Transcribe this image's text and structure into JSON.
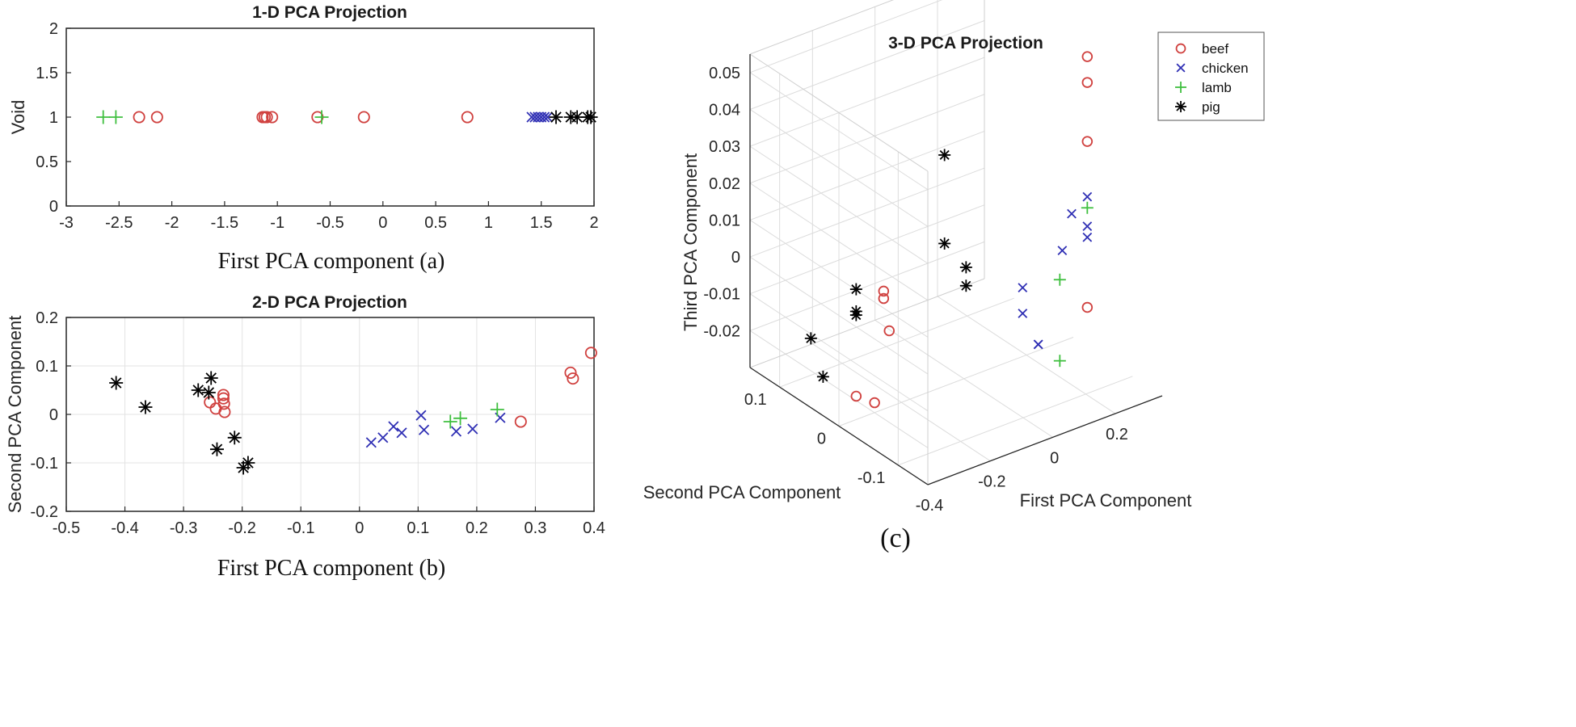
{
  "colors": {
    "beef": "#d0413f",
    "chicken": "#2f2fb4",
    "lamb": "#3fbf3f",
    "pig": "#000000"
  },
  "legend": [
    {
      "name": "beef",
      "marker": "circle"
    },
    {
      "name": "chicken",
      "marker": "x"
    },
    {
      "name": "lamb",
      "marker": "plus"
    },
    {
      "name": "pig",
      "marker": "star"
    }
  ],
  "chart_data": [
    {
      "type": "scatter",
      "title": "1-D PCA Projection",
      "xlabel": "First PCA component  (a)",
      "ylabel": "Void",
      "xlim": [
        -3,
        2
      ],
      "ylim": [
        0,
        2
      ],
      "xticks": [
        "-3",
        "-2.5",
        "-2",
        "-1.5",
        "-1",
        "-0.5",
        "0",
        "0.5",
        "1",
        "1.5",
        "2"
      ],
      "yticks": [
        "0",
        "0.5",
        "1",
        "1.5",
        "2"
      ],
      "series": [
        {
          "name": "beef",
          "marker": "circle",
          "x": [
            -2.31,
            -2.14,
            -1.14,
            -1.12,
            -1.1,
            -1.05,
            -0.62,
            -0.18,
            0.8
          ],
          "y": [
            1,
            1,
            1,
            1,
            1,
            1,
            1,
            1,
            1
          ]
        },
        {
          "name": "chicken",
          "marker": "x",
          "x": [
            1.41,
            1.44,
            1.47,
            1.5,
            1.53,
            1.56
          ],
          "y": [
            1,
            1,
            1,
            1,
            1,
            1
          ]
        },
        {
          "name": "lamb",
          "marker": "plus",
          "x": [
            -2.65,
            -2.53,
            -0.58
          ],
          "y": [
            1,
            1,
            1
          ]
        },
        {
          "name": "pig",
          "marker": "star",
          "x": [
            1.64,
            1.78,
            1.84,
            1.94,
            1.97
          ],
          "y": [
            1,
            1,
            1,
            1,
            1
          ]
        }
      ]
    },
    {
      "type": "scatter",
      "title": "2-D PCA Projection",
      "xlabel": "First PCA component  (b)",
      "ylabel": "Second PCA Component",
      "xlim": [
        -0.5,
        0.4
      ],
      "ylim": [
        -0.2,
        0.2
      ],
      "xticks": [
        "-0.5",
        "-0.4",
        "-0.3",
        "-0.2",
        "-0.1",
        "0",
        "0.1",
        "0.2",
        "0.3",
        "0.4"
      ],
      "yticks": [
        "-0.2",
        "-0.1",
        "0",
        "0.1",
        "0.2"
      ],
      "series": [
        {
          "name": "beef",
          "marker": "circle",
          "x": [
            -0.255,
            -0.245,
            -0.232,
            -0.232,
            -0.231,
            -0.23,
            0.275,
            0.36,
            0.364,
            0.395
          ],
          "y": [
            0.025,
            0.012,
            0.04,
            0.033,
            0.022,
            0.005,
            -0.015,
            0.086,
            0.074,
            0.127
          ]
        },
        {
          "name": "chicken",
          "marker": "x",
          "x": [
            0.02,
            0.04,
            0.058,
            0.072,
            0.105,
            0.11,
            0.165,
            0.193,
            0.24
          ],
          "y": [
            -0.058,
            -0.048,
            -0.025,
            -0.038,
            -0.002,
            -0.032,
            -0.035,
            -0.03,
            -0.007
          ]
        },
        {
          "name": "lamb",
          "marker": "plus",
          "x": [
            0.155,
            0.172,
            0.235
          ],
          "y": [
            -0.015,
            -0.008,
            0.01
          ]
        },
        {
          "name": "pig",
          "marker": "star",
          "x": [
            -0.415,
            -0.365,
            -0.275,
            -0.257,
            -0.253,
            -0.243,
            -0.213,
            -0.198,
            -0.19
          ],
          "y": [
            0.065,
            0.015,
            0.05,
            0.045,
            0.075,
            -0.072,
            -0.048,
            -0.11,
            -0.1
          ]
        }
      ]
    },
    {
      "type": "scatter",
      "title": "3-D PCA Projection",
      "caption": "(c)",
      "xlabel": "First PCA Component",
      "ylabel": "Second PCA Component",
      "zlabel": "Third PCA Component",
      "xlim": [
        -0.4,
        0.35
      ],
      "ylim": [
        -0.15,
        0.15
      ],
      "zlim": [
        -0.03,
        0.055
      ],
      "xticks": [
        "-0.4",
        "-0.2",
        "0",
        "0.2"
      ],
      "yticks": [
        "-0.1",
        "0",
        "0.1"
      ],
      "zticks": [
        "-0.02",
        "-0.01",
        "0",
        "0.01",
        "0.02",
        "0.03",
        "0.04",
        "0.05"
      ],
      "series": [
        {
          "name": "beef",
          "marker": "circle",
          "x": [
            0.3,
            0.3,
            0.3,
            0.3,
            -0.2,
            -0.2,
            -0.22,
            -0.21,
            -0.25
          ],
          "y": [
            -0.05,
            -0.05,
            -0.05,
            -0.05,
            0.03,
            0.03,
            0.01,
            0.04,
            0.05
          ],
          "z": [
            0.053,
            0.046,
            0.03,
            -0.015,
            -0.003,
            -0.005,
            -0.011,
            -0.034,
            -0.032
          ]
        },
        {
          "name": "chicken",
          "marker": "x",
          "x": [
            0.25,
            0.22,
            0.15,
            0.15,
            0.3,
            0.3,
            0.3,
            0.2,
            0.2
          ],
          "y": [
            -0.05,
            -0.05,
            -0.02,
            -0.02,
            -0.05,
            -0.05,
            -0.05,
            -0.02,
            -0.02
          ],
          "z": [
            0.012,
            0.003,
            -0.008,
            -0.015,
            0.015,
            0.007,
            0.004,
            -0.025,
            -0.025
          ]
        },
        {
          "name": "lamb",
          "marker": "plus",
          "x": [
            0.3,
            0.25,
            0.25
          ],
          "y": [
            -0.05,
            -0.03,
            -0.03
          ],
          "z": [
            0.012,
            -0.008,
            -0.03
          ]
        },
        {
          "name": "pig",
          "marker": "star",
          "x": [
            -0.1,
            -0.1,
            -0.05,
            -0.05,
            -0.25,
            -0.25,
            -0.25,
            -0.3,
            -0.28
          ],
          "y": [
            -0.02,
            -0.02,
            -0.03,
            -0.03,
            0.05,
            0.05,
            0.05,
            0.1,
            0.09
          ],
          "z": [
            0.036,
            0.012,
            0.0,
            0.005,
            -0.003,
            -0.009,
            -0.01,
            -0.02,
            -0.03
          ]
        }
      ]
    }
  ]
}
